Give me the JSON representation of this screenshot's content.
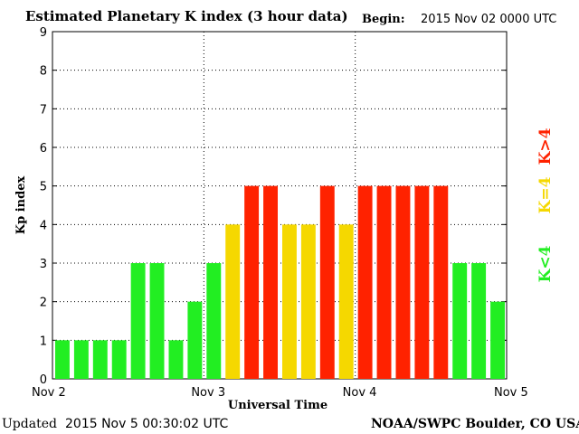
{
  "header": {
    "title": "Estimated Planetary K index (3 hour data)",
    "begin_label": "Begin:",
    "begin_value": "2015 Nov 02 0000 UTC"
  },
  "footer": {
    "updated_label": "Updated",
    "updated_value": "2015 Nov  5 00:30:02 UTC",
    "credit": "NOAA/SWPC Boulder, CO USA"
  },
  "colors": {
    "below": "#22ee22",
    "equal": "#f5d800",
    "above": "#ff2200"
  },
  "legend": {
    "below": "K<4",
    "equal": "K=4",
    "above": "K>4"
  },
  "chart_data": {
    "type": "bar",
    "title": "Estimated Planetary K index (3 hour data)",
    "xlabel": "Universal Time",
    "ylabel": "Kp index",
    "ylim": [
      0,
      9
    ],
    "yticks": [
      0,
      1,
      2,
      3,
      4,
      5,
      6,
      7,
      8,
      9
    ],
    "xtick_labels": [
      "Nov 2",
      "Nov 3",
      "Nov 4",
      "Nov 5"
    ],
    "grid": true,
    "bar_interval_hours": 3,
    "values": [
      1,
      1,
      1,
      1,
      3,
      3,
      1,
      2,
      3,
      4,
      5,
      5,
      4,
      4,
      5,
      4,
      5,
      5,
      5,
      5,
      5,
      3,
      3,
      2
    ]
  }
}
